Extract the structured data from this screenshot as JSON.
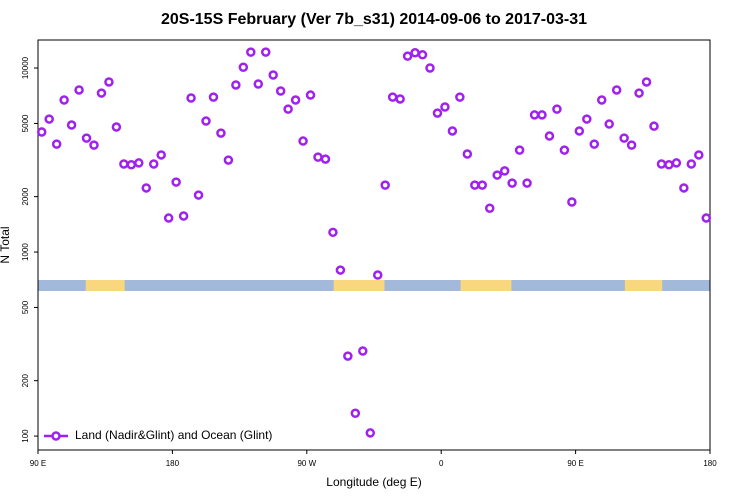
{
  "chart_data": {
    "type": "scatter",
    "title": "20S-15S February (Ver 7b_s31)   2014-09-06 to 2017-03-31",
    "xlabel": "Longitude (deg E)",
    "ylabel": "N Total",
    "log_y": true,
    "legend": "bottom-left",
    "xlim": [
      90,
      540
    ],
    "xticks": [
      {
        "value": 90,
        "label": "90 E"
      },
      {
        "value": 180,
        "label": "180"
      },
      {
        "value": 270,
        "label": "90 W"
      },
      {
        "value": 360,
        "label": "0"
      },
      {
        "value": 450,
        "label": "90 E"
      },
      {
        "value": 540,
        "label": "180"
      }
    ],
    "ylim": [
      84,
      14200
    ],
    "yticks": [
      100,
      200,
      500,
      1000,
      2000,
      5000,
      10000
    ],
    "land_segments": [
      [
        122,
        148
      ],
      [
        288,
        322
      ],
      [
        373,
        407
      ],
      [
        483,
        508
      ]
    ],
    "x": [
      92.5,
      97.5,
      102.5,
      107.5,
      112.5,
      117.5,
      122.5,
      127.5,
      132.5,
      137.5,
      142.5,
      147.5,
      152.5,
      157.5,
      162.5,
      167.5,
      172.5,
      177.5,
      182.5,
      187.5,
      192.5,
      197.5,
      202.5,
      207.5,
      212.5,
      217.5,
      222.5,
      227.5,
      232.5,
      237.5,
      242.5,
      247.5,
      252.5,
      257.5,
      262.5,
      267.5,
      272.5,
      277.5,
      282.5,
      287.5,
      292.5,
      297.5,
      302.5,
      307.5,
      312.5,
      317.5,
      322.5,
      327.5,
      332.5,
      337.5,
      342.5,
      347.5,
      352.5,
      357.5,
      362.5,
      367.5,
      372.5,
      377.5,
      382.5,
      387.5,
      392.5,
      397.5,
      402.5,
      407.5,
      412.5,
      417.5,
      422.5,
      427.5,
      432.5,
      437.5,
      442.5,
      447.5,
      452.5,
      457.5,
      462.5,
      467.5,
      472.5,
      477.5,
      482.5,
      487.5,
      492.5,
      497.5,
      502.5,
      507.5,
      512.5,
      517.5,
      522.5,
      527.5,
      532.5,
      537.5
    ],
    "series": [
      {
        "name": "Land (Nadir&Glint) and Ocean (Glint)",
        "color": "#a020f0",
        "values": [
          4490,
          5280,
          3860,
          6700,
          4900,
          7600,
          4160,
          3810,
          7310,
          8400,
          4780,
          3010,
          2980,
          3050,
          2230,
          3010,
          3370,
          1530,
          2400,
          1570,
          6870,
          2040,
          5150,
          6950,
          4430,
          3160,
          8090,
          10100,
          12200,
          8190,
          12200,
          9160,
          7500,
          5980,
          6700,
          4010,
          7130,
          3280,
          3200,
          1280,
          798,
          272,
          133,
          290,
          104,
          750,
          2310,
          6950,
          6790,
          11600,
          12100,
          11800,
          10000,
          5690,
          6140,
          4550,
          6950,
          3410,
          2310,
          2310,
          1730,
          2620,
          2760,
          2370,
          3580,
          2370,
          5560,
          5560,
          4270,
          5980,
          3580,
          1870,
          4550,
          5280,
          3860,
          6700,
          4960,
          7600,
          4160,
          3810,
          7310,
          8400,
          4830,
          3010,
          2980,
          3050,
          2230,
          3010,
          3370,
          1530
        ]
      }
    ]
  }
}
